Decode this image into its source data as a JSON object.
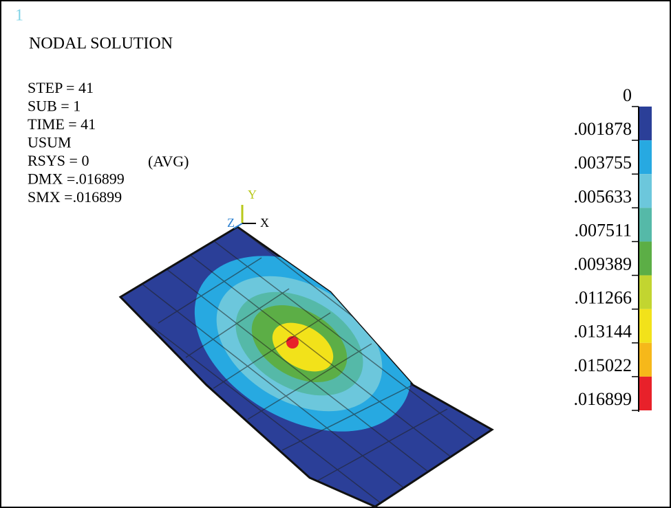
{
  "window_number": "1",
  "title": "NODAL SOLUTION",
  "info": [
    "STEP = 41",
    "SUB  = 1",
    "TIME = 41",
    "USUM",
    "RSYS = 0",
    "DMX =.016899",
    "SMX =.016899"
  ],
  "avg": "(AVG)",
  "triad": {
    "y": "Y",
    "z": "Z",
    "x": "X"
  },
  "legend": {
    "labels": [
      "0",
      ".001878",
      ".003755",
      ".005633",
      ".007511",
      ".009389",
      ".011266",
      ".013144",
      ".015022",
      ".016899"
    ],
    "colors": [
      "#2b3f98",
      "#27a9e1",
      "#6cc7dc",
      "#55b9a8",
      "#5cae46",
      "#c2d530",
      "#f2e21a",
      "#f6b81a",
      "#e8212a"
    ]
  }
}
